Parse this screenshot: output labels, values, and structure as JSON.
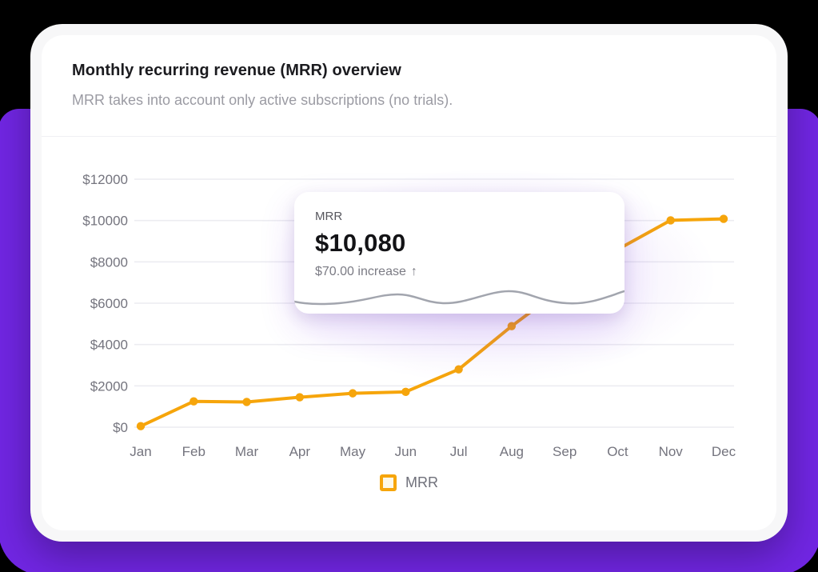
{
  "header": {
    "title": "Monthly recurring revenue (MRR) overview",
    "subtitle": "MRR takes into account only active subscriptions (no trials)."
  },
  "tooltip": {
    "label": "MRR",
    "value": "$10,080",
    "delta": "$70.00 increase",
    "arrow": "↑"
  },
  "legend": {
    "label": "MRR"
  },
  "colors": {
    "accent": "#F6A50B",
    "background_purple": "#7126E3",
    "grid": "#ECECF1",
    "axis_text": "#74747E",
    "legend_swatch_fill": "#FDF8E7",
    "tooltip_wave": "#A2A5AE"
  },
  "chart_data": {
    "type": "line",
    "title": "Monthly recurring revenue (MRR) overview",
    "categories": [
      "Jan",
      "Feb",
      "Mar",
      "Apr",
      "May",
      "Jun",
      "Jul",
      "Aug",
      "Sep",
      "Oct",
      "Nov",
      "Dec"
    ],
    "series": [
      {
        "name": "MRR",
        "values": [
          50,
          1250,
          1220,
          1450,
          1640,
          1710,
          2800,
          4890,
          6800,
          8600,
          10010,
          10080
        ]
      }
    ],
    "xlabel": "",
    "ylabel": "",
    "ylim": [
      0,
      12000
    ],
    "y_ticks": [
      0,
      2000,
      4000,
      6000,
      8000,
      10000,
      12000
    ],
    "y_tick_labels": [
      "$0",
      "$2000",
      "$4000",
      "$6000",
      "$8000",
      "$10000",
      "$12000"
    ],
    "grid": "horizontal",
    "legend_position": "bottom",
    "highlighted_point": {
      "category": "Dec",
      "value": 10080,
      "delta_text": "$70.00 increase"
    }
  }
}
